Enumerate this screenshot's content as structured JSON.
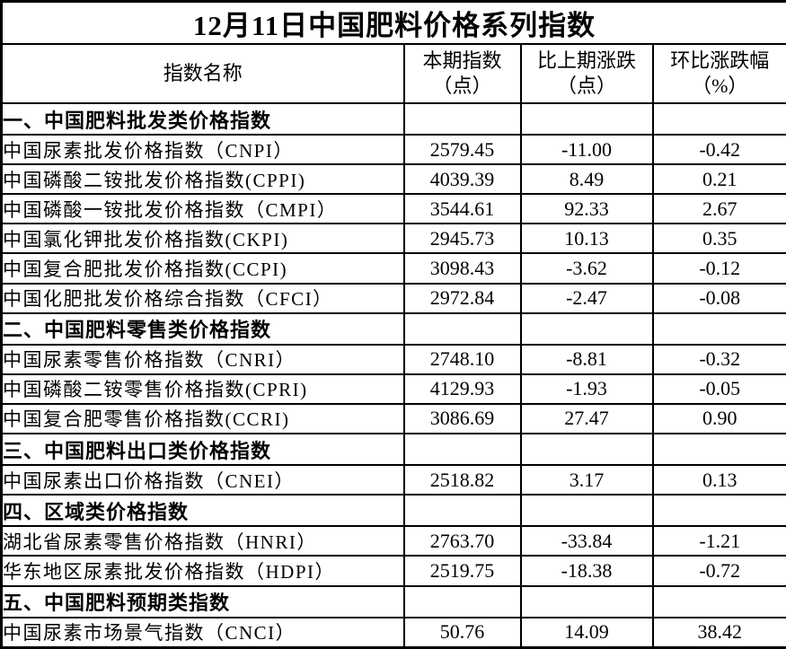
{
  "title": "12月11日中国肥料价格系列指数",
  "header": {
    "name_column": "指数名称",
    "value_columns": [
      {
        "line1": "本期指数",
        "line2": "（点）"
      },
      {
        "line1": "比上期涨跌",
        "line2": "（点）"
      },
      {
        "line1": "环比涨跌幅",
        "line2": "（%）"
      }
    ]
  },
  "rows": [
    {
      "type": "section",
      "name": "一、中国肥料批发类价格指数"
    },
    {
      "type": "data",
      "name": "中国尿素批发价格指数（CNPI）",
      "current": "2579.45",
      "change": "-11.00",
      "pct": "-0.42"
    },
    {
      "type": "data",
      "name": "中国磷酸二铵批发价格指数(CPPI)",
      "current": "4039.39",
      "change": "8.49",
      "pct": "0.21"
    },
    {
      "type": "data",
      "name": "中国磷酸一铵批发价格指数（CMPI）",
      "current": "3544.61",
      "change": "92.33",
      "pct": "2.67"
    },
    {
      "type": "data",
      "name": "中国氯化钾批发价格指数(CKPI)",
      "current": "2945.73",
      "change": "10.13",
      "pct": "0.35"
    },
    {
      "type": "data",
      "name": "中国复合肥批发价格指数(CCPI)",
      "current": "3098.43",
      "change": "-3.62",
      "pct": "-0.12"
    },
    {
      "type": "data",
      "name": "中国化肥批发价格综合指数（CFCI）",
      "current": "2972.84",
      "change": "-2.47",
      "pct": "-0.08"
    },
    {
      "type": "section",
      "name": "二、中国肥料零售类价格指数"
    },
    {
      "type": "data",
      "name": "中国尿素零售价格指数（CNRI）",
      "current": "2748.10",
      "change": "-8.81",
      "pct": "-0.32"
    },
    {
      "type": "data",
      "name": "中国磷酸二铵零售价格指数(CPRI)",
      "current": "4129.93",
      "change": "-1.93",
      "pct": "-0.05"
    },
    {
      "type": "data",
      "name": "中国复合肥零售价格指数(CCRI)",
      "current": "3086.69",
      "change": "27.47",
      "pct": "0.90"
    },
    {
      "type": "section",
      "name": "三、中国肥料出口类价格指数"
    },
    {
      "type": "data",
      "name": "中国尿素出口价格指数（CNEI）",
      "current": "2518.82",
      "change": "3.17",
      "pct": "0.13"
    },
    {
      "type": "section",
      "name": "四、区域类价格指数"
    },
    {
      "type": "data",
      "name": "湖北省尿素零售价格指数（HNRI）",
      "current": "2763.70",
      "change": "-33.84",
      "pct": "-1.21"
    },
    {
      "type": "data",
      "name": "华东地区尿素批发价格指数（HDPI）",
      "current": "2519.75",
      "change": "-18.38",
      "pct": "-0.72"
    },
    {
      "type": "section",
      "name": "五、中国肥料预期类指数"
    },
    {
      "type": "data",
      "name": "中国尿素市场景气指数（CNCI）",
      "current": "50.76",
      "change": "14.09",
      "pct": "38.42"
    }
  ],
  "colors": {
    "border": "#000000",
    "text": "#000000",
    "background": "#ffffff"
  }
}
